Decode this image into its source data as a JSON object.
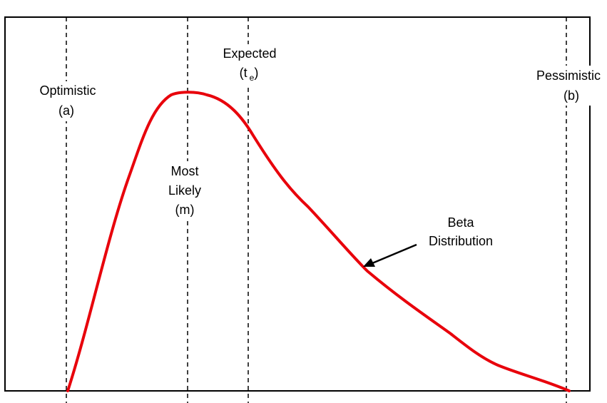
{
  "labels": {
    "optimistic": {
      "name": "Optimistic",
      "symbol": "(a)"
    },
    "most_likely": {
      "line1": "Most",
      "line2": "Likely",
      "symbol": "(m)"
    },
    "expected": {
      "name": "Expected",
      "open": "(t",
      "subscript": "e",
      "close": ")"
    },
    "pessimistic": {
      "name": "Pessimistic",
      "symbol": "(b)"
    },
    "curve": {
      "line1": "Beta",
      "line2": "Distribution"
    }
  },
  "colors": {
    "curve": "#e8000b",
    "frame": "#000000",
    "marker_lines": "#000000"
  }
}
